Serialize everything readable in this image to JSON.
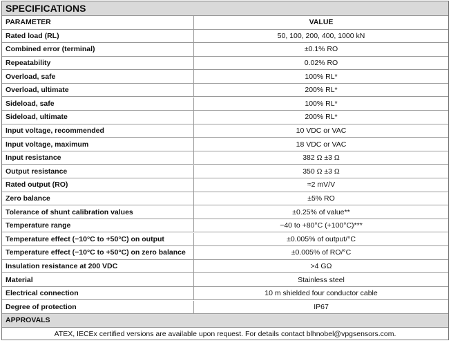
{
  "header": {
    "title": "SPECIFICATIONS"
  },
  "table": {
    "columns": [
      "PARAMETER",
      "VALUE"
    ],
    "rows": [
      [
        "Rated load (RL)",
        "50, 100, 200, 400, 1000 kN"
      ],
      [
        "Combined error (terminal)",
        "±0.1% RO"
      ],
      [
        "Repeatability",
        "0.02% RO"
      ],
      [
        "Overload, safe",
        "100% RL*"
      ],
      [
        "Overload, ultimate",
        "200% RL*"
      ],
      [
        "Sideload, safe",
        "100% RL*"
      ],
      [
        "Sideload, ultimate",
        "200% RL*"
      ],
      [
        "Input voltage, recommended",
        "10 VDC or VAC"
      ],
      [
        "Input voltage, maximum",
        "18 VDC or VAC"
      ],
      [
        "Input resistance",
        "382 Ω ±3 Ω"
      ],
      [
        "Output resistance",
        "350 Ω ±3 Ω"
      ],
      [
        "Rated output (RO)",
        "≈2 mV/V"
      ],
      [
        "Zero balance",
        "±5% RO"
      ],
      [
        "Tolerance of shunt calibration values",
        "±0.25% of value**"
      ],
      [
        "Temperature range",
        "−40 to +80°C (+100°C)***"
      ],
      [
        "Temperature effect (−10°C to +50°C) on output",
        "±0.005% of output/°C"
      ],
      [
        "Temperature effect (−10°C to +50°C) on zero balance",
        "±0.005% of RO/°C"
      ],
      [
        "Insulation resistance at 200 VDC",
        ">4 GΩ"
      ],
      [
        "Material",
        "Stainless steel"
      ],
      [
        "Electrical connection",
        "10 m shielded four conductor cable"
      ],
      [
        "Degree of protection",
        "IP67"
      ]
    ]
  },
  "approvals": {
    "title": "APPROVALS",
    "text": "ATEX, IECEx certified versions are available upon request. For details contact blhnobel@vpgsensors.com."
  }
}
